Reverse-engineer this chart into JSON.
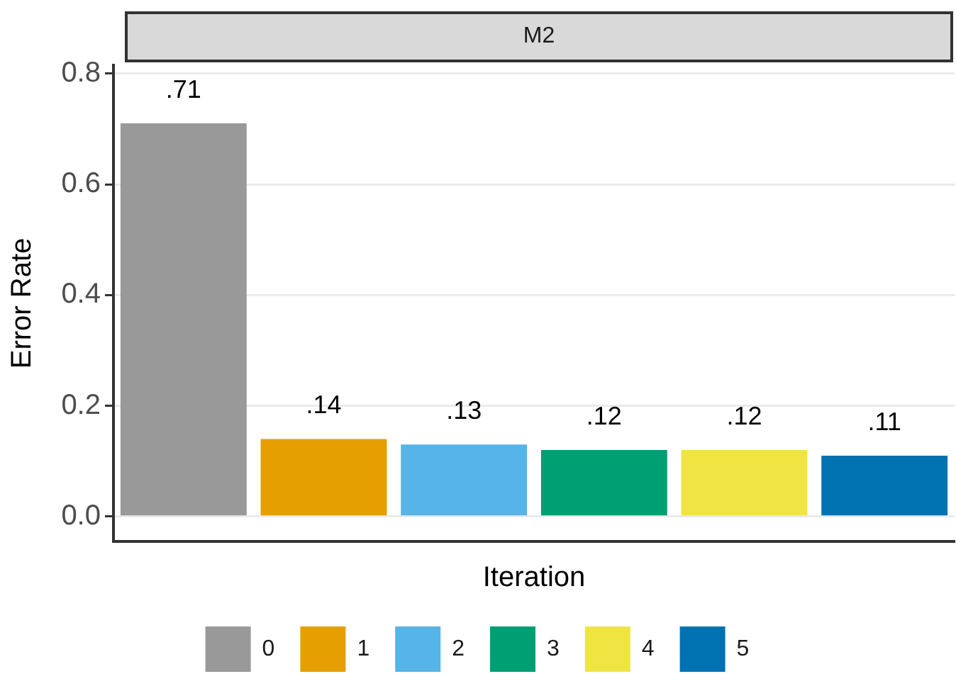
{
  "chart_data": {
    "type": "bar",
    "title": "M2",
    "xlabel": "Iteration",
    "ylabel": "Error Rate",
    "categories": [
      null,
      null,
      null,
      null,
      null,
      null
    ],
    "series": [
      {
        "name": "0",
        "color": "#999999",
        "values": [
          0.71,
          null,
          null,
          null,
          null,
          null
        ],
        "value_labels": [
          ".71",
          null,
          null,
          null,
          null,
          null
        ]
      },
      {
        "name": "1",
        "color": "#e69f00",
        "values": [
          null,
          0.14,
          null,
          null,
          null,
          null
        ],
        "value_labels": [
          null,
          ".14",
          null,
          null,
          null,
          null
        ]
      },
      {
        "name": "2",
        "color": "#56b4e9",
        "values": [
          null,
          null,
          0.13,
          null,
          null,
          null
        ],
        "value_labels": [
          null,
          null,
          ".13",
          null,
          null,
          null
        ]
      },
      {
        "name": "3",
        "color": "#009e73",
        "values": [
          null,
          null,
          null,
          0.12,
          null,
          null
        ],
        "value_labels": [
          null,
          null,
          null,
          ".12",
          null,
          null
        ]
      },
      {
        "name": "4",
        "color": "#f0e442",
        "values": [
          null,
          null,
          null,
          null,
          0.12,
          null
        ],
        "value_labels": [
          null,
          null,
          null,
          null,
          ".12",
          null
        ]
      },
      {
        "name": "5",
        "color": "#0072b2",
        "values": [
          null,
          null,
          null,
          null,
          null,
          0.11
        ],
        "value_labels": [
          null,
          null,
          null,
          null,
          null,
          ".11"
        ]
      }
    ],
    "stacked": true,
    "ylim": [
      -0.045,
      0.815
    ],
    "yticks": [
      {
        "value": 0,
        "label": "0.0"
      },
      {
        "value": 0.2,
        "label": "0.2"
      },
      {
        "value": 0.4,
        "label": "0.4"
      },
      {
        "value": 0.6,
        "label": "0.6"
      },
      {
        "value": 0.8,
        "label": "0.8"
      }
    ],
    "grid": "y",
    "legend": "bottom"
  }
}
